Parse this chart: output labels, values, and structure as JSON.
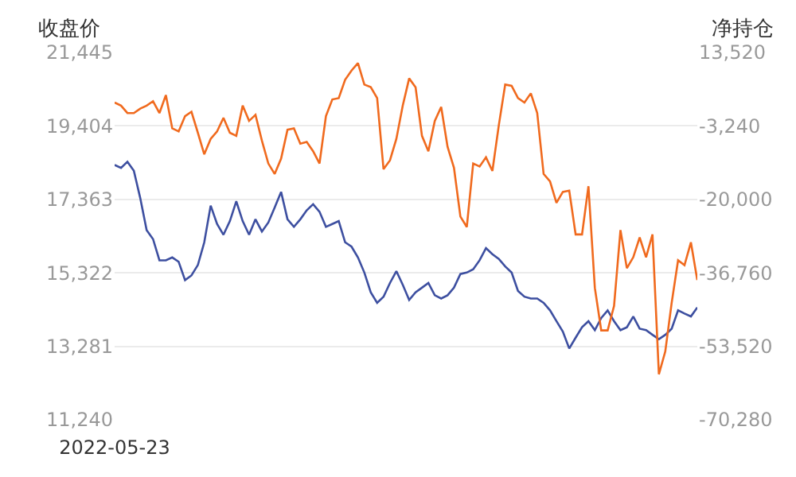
{
  "chart_data": {
    "type": "line",
    "ylabel": "收盘价",
    "y2label": "净持仓",
    "categories": [
      "2022-05-23",
      null,
      null,
      null,
      null,
      null,
      null,
      null,
      null,
      null,
      null,
      null,
      null,
      null,
      null,
      null,
      null,
      null,
      null,
      null,
      null,
      null,
      null,
      null,
      null,
      null,
      null,
      null,
      null,
      null,
      null,
      null,
      null,
      null,
      null,
      null,
      null,
      null,
      null,
      null,
      null,
      null,
      null,
      null,
      null,
      null,
      null,
      null,
      null,
      null,
      null,
      null,
      null,
      null,
      null,
      null,
      null,
      null,
      null,
      null,
      null,
      null,
      null,
      null,
      null,
      null,
      null,
      null,
      null,
      null,
      null,
      null,
      null,
      null,
      null,
      null,
      null,
      null,
      null,
      null,
      null,
      null,
      null,
      null,
      null,
      null,
      null,
      null,
      null,
      null,
      null,
      null
    ],
    "series": [
      {
        "color": "#3d4fa0",
        "values": [
          18320,
          18240,
          18410,
          18160,
          17400,
          16510,
          16260,
          15670,
          15670,
          15750,
          15630,
          15120,
          15250,
          15540,
          16170,
          17190,
          16680,
          16380,
          16760,
          17310,
          16760,
          16380,
          16810,
          16470,
          16720,
          17140,
          17570,
          16810,
          16600,
          16810,
          17060,
          17230,
          17020,
          16600,
          16680,
          16760,
          16170,
          16050,
          15750,
          15330,
          14780,
          14490,
          14660,
          15040,
          15370,
          14990,
          14570,
          14780,
          14910,
          15040,
          14700,
          14610,
          14700,
          14910,
          15290,
          15330,
          15420,
          15670,
          16010,
          15840,
          15710,
          15500,
          15330,
          14820,
          14660,
          14610,
          14610,
          14490,
          14280,
          13980,
          13690,
          13220,
          13520,
          13810,
          13980,
          13730,
          14070,
          14280,
          13980,
          13730,
          13810,
          14110,
          13770,
          13730,
          13600,
          13480,
          13600,
          13770,
          14280,
          14190,
          14110,
          14360
        ]
      },
      {
        "color": "#f06a1e",
        "axis": "y2",
        "values": [
          2100,
          1400,
          -300,
          -300,
          700,
          1400,
          2400,
          -300,
          3800,
          -3800,
          -4500,
          -1000,
          0,
          -4800,
          -9700,
          -6200,
          -4500,
          -1400,
          -4800,
          -5500,
          1400,
          -2100,
          -700,
          -6600,
          -11800,
          -14200,
          -10700,
          -4100,
          -3800,
          -7300,
          -6900,
          -9000,
          -11800,
          -1000,
          2800,
          3100,
          7300,
          9400,
          11100,
          6200,
          5600,
          3100,
          -13100,
          -11100,
          -6200,
          1400,
          7600,
          5600,
          -5500,
          -9000,
          -2100,
          1100,
          -8000,
          -12800,
          -23900,
          -26300,
          -11800,
          -12500,
          -10400,
          -13500,
          -3100,
          6200,
          5900,
          3100,
          2100,
          4200,
          -300,
          -14200,
          -15900,
          -20800,
          -18300,
          -18000,
          -28000,
          -28000,
          -17000,
          -40200,
          -49900,
          -49900,
          -44300,
          -27000,
          -35700,
          -33200,
          -28700,
          -33200,
          -28000,
          -59900,
          -54700,
          -43600,
          -33900,
          -35000,
          -29800,
          -38400
        ]
      }
    ],
    "ylim": [
      11240,
      21445
    ],
    "yticks": [
      {
        "value": 11240,
        "label": "11,240"
      },
      {
        "value": 13281,
        "label": "13,281"
      },
      {
        "value": 15322,
        "label": "15,322"
      },
      {
        "value": 17363,
        "label": "17,363"
      },
      {
        "value": 19404,
        "label": "19,404"
      },
      {
        "value": 21445,
        "label": "21,445"
      }
    ],
    "y2lim": [
      -70280,
      13520
    ],
    "y2ticks": [
      {
        "value": -70280,
        "label": "-70,280"
      },
      {
        "value": -53520,
        "label": "-53,520"
      },
      {
        "value": -36760,
        "label": "-36,760"
      },
      {
        "value": -20000,
        "label": "-20,000"
      },
      {
        "value": -3240,
        "label": "-3,240"
      },
      {
        "value": 13520,
        "label": "13,520"
      }
    ],
    "grid": "y",
    "marker": "none",
    "line_style": "solid"
  }
}
